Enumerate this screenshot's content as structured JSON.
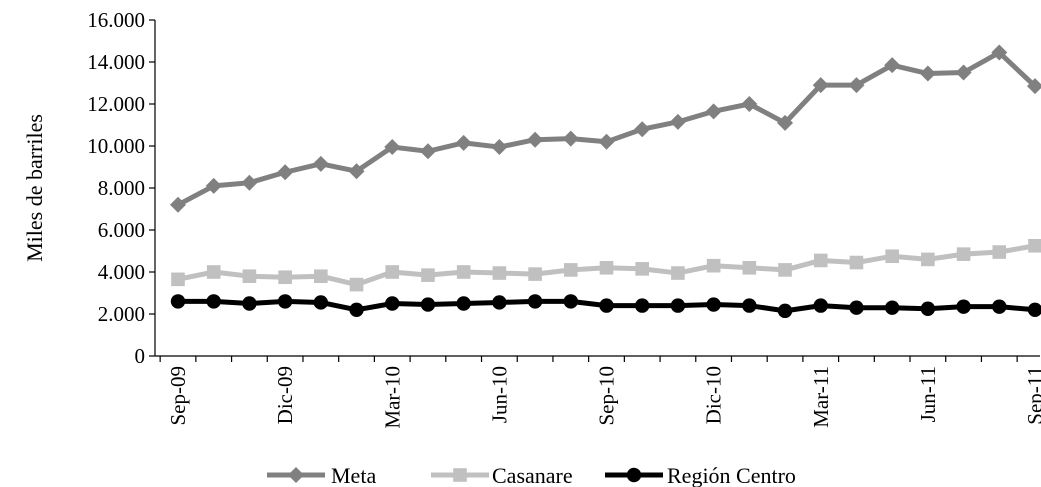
{
  "chart_data": {
    "type": "line",
    "ylabel": "Miles de barriles",
    "xlabel": "",
    "ylim": [
      0,
      16000
    ],
    "y_ticks": [
      0,
      2000,
      4000,
      6000,
      8000,
      10000,
      12000,
      14000,
      16000
    ],
    "y_tick_labels": [
      "0",
      "2.000",
      "4.000",
      "6.000",
      "8.000",
      "10.000",
      "12.000",
      "14.000",
      "16.000"
    ],
    "x": [
      "Sep-09",
      "Oct-09",
      "Nov-09",
      "Dic-09",
      "Ene-10",
      "Feb-10",
      "Mar-10",
      "Abr-10",
      "May-10",
      "Jun-10",
      "Jul-10",
      "Ago-10",
      "Sep-10",
      "Oct-10",
      "Nov-10",
      "Dic-10",
      "Ene-11",
      "Feb-11",
      "Mar-11",
      "Abr-11",
      "May-11",
      "Jun-11",
      "Jul-11",
      "Ago-11",
      "Sep-11"
    ],
    "x_tick_labels": [
      {
        "index": 0,
        "label": "Sep-09"
      },
      {
        "index": 3,
        "label": "Dic-09"
      },
      {
        "index": 6,
        "label": "Mar-10"
      },
      {
        "index": 9,
        "label": "Jun-10"
      },
      {
        "index": 12,
        "label": "Sep-10"
      },
      {
        "index": 15,
        "label": "Dic-10"
      },
      {
        "index": 18,
        "label": "Mar-11"
      },
      {
        "index": 21,
        "label": "Jun-11"
      },
      {
        "index": 24,
        "label": "Sep-11"
      }
    ],
    "grid": false,
    "legend_position": "bottom",
    "series": [
      {
        "name": "Meta",
        "color": "#808080",
        "marker": "diamond",
        "values": [
          7200,
          8100,
          8250,
          8750,
          9150,
          8800,
          9950,
          9750,
          10150,
          9950,
          10300,
          10350,
          10200,
          10800,
          11150,
          11650,
          12000,
          11100,
          12900,
          12900,
          13850,
          13450,
          13500,
          14450,
          12850
        ]
      },
      {
        "name": "Casanare",
        "color": "#c0c0c0",
        "marker": "square",
        "values": [
          3650,
          4000,
          3800,
          3750,
          3800,
          3400,
          4000,
          3850,
          4000,
          3950,
          3900,
          4100,
          4200,
          4150,
          3950,
          4300,
          4200,
          4100,
          4550,
          4450,
          4750,
          4600,
          4850,
          4950,
          5250
        ]
      },
      {
        "name": "Región Centro",
        "color": "#000000",
        "marker": "circle",
        "values": [
          2600,
          2600,
          2500,
          2600,
          2550,
          2200,
          2500,
          2450,
          2500,
          2550,
          2600,
          2600,
          2400,
          2400,
          2400,
          2450,
          2400,
          2150,
          2400,
          2300,
          2300,
          2250,
          2350,
          2350,
          2200
        ]
      }
    ]
  }
}
